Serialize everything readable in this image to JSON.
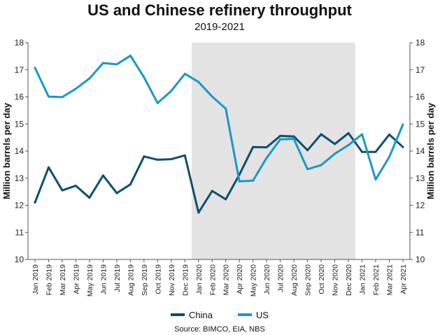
{
  "chart_data": {
    "type": "line",
    "title": "US and Chinese refinery throughput",
    "subtitle": "2019-2021",
    "ylabel_left": "Million barrels per day",
    "ylabel_right": "Million barrels per day",
    "ylim": [
      10,
      18
    ],
    "yticks": [
      "10",
      "11",
      "12",
      "13",
      "14",
      "15",
      "16",
      "17",
      "18"
    ],
    "categories": [
      "Jan 2019",
      "Feb 2019",
      "Mar 2019",
      "Apr 2019",
      "May 2019",
      "Jun 2019",
      "Jul 2019",
      "Aug 2019",
      "Sep 2019",
      "Oct 2019",
      "Nov 2019",
      "Dec 2019",
      "Jan 2020",
      "Feb 2020",
      "Mar 2020",
      "Apr 2020",
      "May 2020",
      "Jun 2020",
      "Jul 2020",
      "Aug 2020",
      "Sep 2020",
      "Oct 2020",
      "Nov 2020",
      "Dec 2020",
      "Jan 2021",
      "Feb 2021",
      "Mar 2021",
      "Apr 2021"
    ],
    "shaded_range": [
      "Jan 2020",
      "Dec 2020"
    ],
    "series": [
      {
        "name": "China",
        "color": "#0d4f6e",
        "values": [
          12.1,
          13.4,
          12.55,
          12.72,
          12.28,
          13.1,
          12.45,
          12.77,
          13.8,
          13.68,
          13.7,
          13.84,
          11.73,
          12.53,
          12.22,
          13.13,
          14.15,
          14.14,
          14.56,
          14.54,
          14.03,
          14.62,
          14.26,
          14.66,
          13.97,
          13.97,
          14.61,
          14.15
        ]
      },
      {
        "name": "US",
        "color": "#1a98c4",
        "values": [
          17.07,
          16.01,
          15.99,
          16.3,
          16.68,
          17.25,
          17.2,
          17.52,
          16.72,
          15.77,
          16.22,
          16.85,
          16.55,
          16.01,
          15.57,
          12.88,
          12.91,
          13.75,
          14.43,
          14.45,
          13.33,
          13.48,
          13.9,
          14.22,
          14.62,
          12.95,
          13.78,
          14.98
        ]
      }
    ],
    "legend": {
      "position": "bottom",
      "items": [
        {
          "label": "China",
          "color": "#0d4f6e"
        },
        {
          "label": "US",
          "color": "#1a98c4"
        }
      ]
    },
    "source": "Source: BIMCO, EIA, NBS"
  }
}
